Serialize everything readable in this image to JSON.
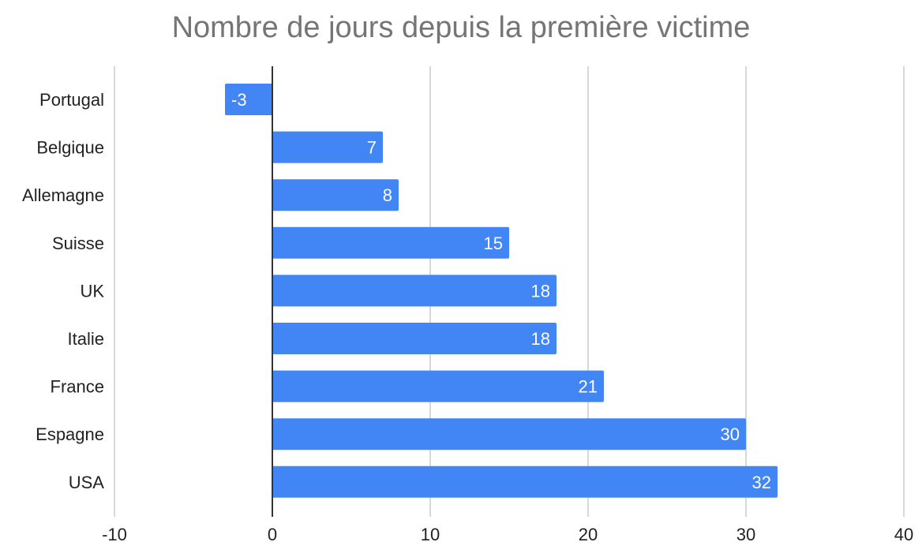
{
  "chart_data": {
    "type": "bar",
    "orientation": "horizontal",
    "title": "Nombre de jours depuis la première victime",
    "categories": [
      "Portugal",
      "Belgique",
      "Allemagne",
      "Suisse",
      "UK",
      "Italie",
      "France",
      "Espagne",
      "USA"
    ],
    "values": [
      -3,
      7,
      8,
      15,
      18,
      18,
      21,
      30,
      32
    ],
    "xlim": [
      -10,
      40
    ],
    "xticks": [
      -10,
      0,
      10,
      20,
      30,
      40
    ],
    "xtick_labels": [
      "-10",
      "0",
      "10",
      "20",
      "30",
      "40"
    ],
    "xlabel": "",
    "ylabel": "",
    "grid": true,
    "legend": "none",
    "data_labels": true,
    "colors": {
      "bar": "#4285f4",
      "grid": "#cccccc",
      "zero_line": "#333333",
      "title": "#757575",
      "text": "#222222"
    }
  }
}
